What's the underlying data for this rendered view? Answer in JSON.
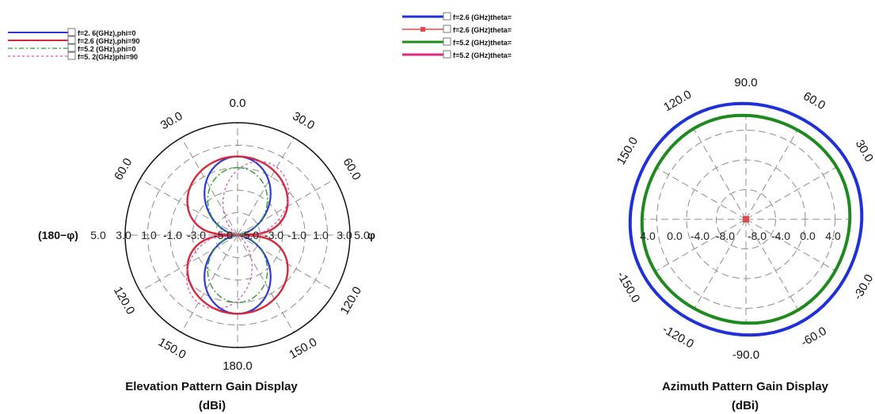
{
  "chart_data": [
    {
      "type": "line",
      "subtype": "polar",
      "title": "Elevation Pattern Gain Display",
      "unit_label": "(dBi)",
      "left_axis_label": "(180−φ)",
      "right_axis_label": "φ",
      "radial_tick_labels_left": [
        "5.0",
        "3.0",
        "1.0",
        "-1.0",
        "-3.0",
        "-5.0"
      ],
      "radial_tick_labels_right": [
        "-5.0",
        "-3.0",
        "-1.0",
        "1.0",
        "3.0",
        "5.0"
      ],
      "radial_range_dbi": [
        -5.0,
        5.0
      ],
      "angle_labels": [
        "0.0",
        "30.0",
        "60.0",
        "120.0",
        "150.0",
        "180.0",
        "150.0",
        "120.0",
        "60.0",
        "30.0"
      ],
      "legend": {
        "position": "top-left",
        "entries": [
          "f=2. 6(GHz),phi=0",
          "f=2.6 (GHz),phi=90",
          "f=5.2 (GHz),phi=0",
          "f=5. 2(GHz)phi=90"
        ]
      },
      "series": [
        {
          "name": "f=2. 6(GHz),phi=0",
          "color": "#2b3ad6",
          "style": "solid",
          "pattern": "figure-eight dipole",
          "peak_gain_dbi": 2.0
        },
        {
          "name": "f=2.6 (GHz),phi=90",
          "color": "#d6283a",
          "style": "solid",
          "pattern": "broad figure-eight",
          "peak_gain_dbi": 2.0
        },
        {
          "name": "f=5.2 (GHz),phi=0",
          "color": "#2e9a2e",
          "style": "dashed",
          "pattern": "figure-eight",
          "peak_gain_dbi": 1.0
        },
        {
          "name": "f=5. 2(GHz)phi=90",
          "color": "#e24fb6",
          "style": "dotted",
          "pattern": "tilted figure-eight",
          "peak_gain_dbi": 2.0
        }
      ],
      "grid": true
    },
    {
      "type": "line",
      "subtype": "polar",
      "title": "Azimuth Pattern Gain Display",
      "unit_label": "(dBi)",
      "radial_tick_labels_left": [
        "4.0",
        "0.0",
        "-4.0",
        "-8.0"
      ],
      "radial_tick_labels_right": [
        "-8.0",
        "-4.0",
        "0.0",
        "4.0"
      ],
      "radial_range_dbi": [
        -12.0,
        4.0
      ],
      "angle_labels": [
        "90.0",
        "60.0",
        "30.0",
        "120.0",
        "150.0",
        "-150.0",
        "-120.0",
        "-90.0",
        "-60.0",
        "-30.0"
      ],
      "legend": {
        "position": "top",
        "entries": [
          "f=2.6 (GHz)theta=",
          "f=2.6 (GHz)theta=",
          "f=5.2 (GHz)theta=",
          "f=5.2 (GHz)theta="
        ]
      },
      "series": [
        {
          "name": "f=2.6 (GHz)theta=",
          "color": "#2030d8",
          "style": "solid",
          "pattern": "omnidirectional",
          "gain_dbi": 3.6
        },
        {
          "name": "f=2.6 (GHz)theta=",
          "color": "#e04a4a",
          "style": "marker",
          "pattern": "point at origin",
          "gain_dbi": -12.0
        },
        {
          "name": "f=5.2 (GHz)theta=",
          "color": "#1e8a1e",
          "style": "solid",
          "pattern": "omnidirectional",
          "gain_dbi": 2.0
        },
        {
          "name": "f=5.2 (GHz)theta=",
          "color": "#e0287a",
          "style": "solid",
          "pattern": "not visible",
          "gain_dbi": null
        }
      ],
      "grid": true
    }
  ]
}
